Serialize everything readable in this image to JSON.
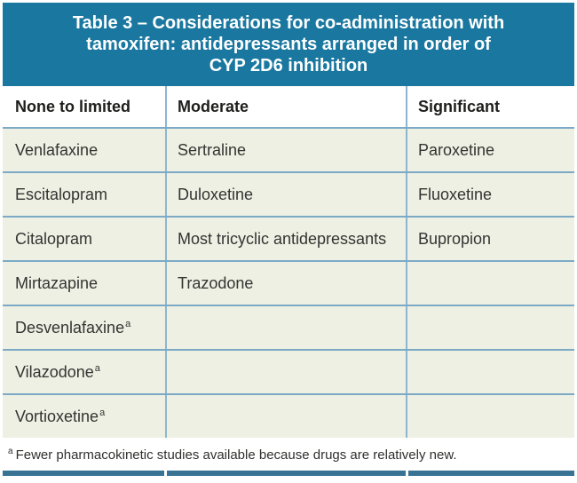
{
  "header": {
    "title_lines": [
      "Table 3 – Considerations for co-administration with",
      "tamoxifen: antidepressants arranged in order of",
      "CYP 2D6 inhibition"
    ]
  },
  "colors": {
    "title_bg": "#1a78a0",
    "row_bg": "#eef0e3",
    "horizontal_rule": "#7caac6",
    "vertical_rule": "#8cb6d0",
    "bottom_bar": "#387394",
    "title_text": "#ffffff",
    "body_text": "#343432"
  },
  "table": {
    "column_headers": [
      "None to limited",
      "Moderate",
      "Significant"
    ],
    "rows": [
      {
        "cells": [
          {
            "text": "Venlafaxine",
            "sup": ""
          },
          {
            "text": "Sertraline",
            "sup": ""
          },
          {
            "text": "Paroxetine",
            "sup": ""
          }
        ]
      },
      {
        "cells": [
          {
            "text": "Escitalopram",
            "sup": ""
          },
          {
            "text": "Duloxetine",
            "sup": ""
          },
          {
            "text": "Fluoxetine",
            "sup": ""
          }
        ]
      },
      {
        "cells": [
          {
            "text": "Citalopram",
            "sup": ""
          },
          {
            "text": "Most tricyclic antidepressants",
            "sup": ""
          },
          {
            "text": "Bupropion",
            "sup": ""
          }
        ]
      },
      {
        "cells": [
          {
            "text": "Mirtazapine",
            "sup": ""
          },
          {
            "text": "Trazodone",
            "sup": ""
          },
          {
            "text": "",
            "sup": ""
          }
        ]
      },
      {
        "cells": [
          {
            "text": "Desvenlafaxine",
            "sup": "a"
          },
          {
            "text": "",
            "sup": ""
          },
          {
            "text": "",
            "sup": ""
          }
        ]
      },
      {
        "cells": [
          {
            "text": "Vilazodone",
            "sup": "a"
          },
          {
            "text": "",
            "sup": ""
          },
          {
            "text": "",
            "sup": ""
          }
        ]
      },
      {
        "cells": [
          {
            "text": "Vortioxetine",
            "sup": "a"
          },
          {
            "text": "",
            "sup": ""
          },
          {
            "text": "",
            "sup": ""
          }
        ]
      }
    ]
  },
  "footnote": {
    "marker": "a",
    "text": "Fewer pharmacokinetic studies available because drugs are relatively new."
  }
}
